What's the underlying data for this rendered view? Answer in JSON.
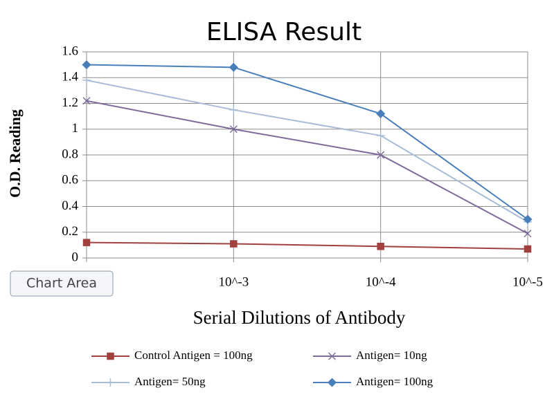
{
  "chart_data": {
    "type": "line",
    "title": "ELISA Result",
    "x_label": "Serial Dilutions  of Antibody",
    "y_label": "O.D. Reading",
    "tooltip": "Chart Area",
    "categories": [
      null,
      "10^-3",
      "10^-4",
      "10^-5"
    ],
    "series": [
      {
        "name": "Control Antigen = 100ng",
        "color": "#a0413e",
        "marker": "square",
        "values": [
          0.12,
          0.11,
          0.09,
          0.07
        ]
      },
      {
        "name": "Antigen= 10ng",
        "color": "#7e6a9a",
        "marker": "x",
        "values": [
          1.22,
          1.0,
          0.8,
          0.19
        ]
      },
      {
        "name": "Antigen= 50ng",
        "color": "#a8bcd8",
        "marker": "plus",
        "values": [
          1.38,
          1.15,
          0.95,
          0.28
        ]
      },
      {
        "name": "Antigen= 100ng",
        "color": "#4a7ebb",
        "marker": "diamond",
        "values": [
          1.5,
          1.48,
          1.12,
          0.3
        ]
      }
    ],
    "ylim": [
      0,
      1.6
    ],
    "yticks": [
      0,
      0.2,
      0.4,
      0.6,
      0.8,
      1,
      1.2,
      1.4,
      1.6
    ],
    "grid": true,
    "legend": "bottom"
  }
}
